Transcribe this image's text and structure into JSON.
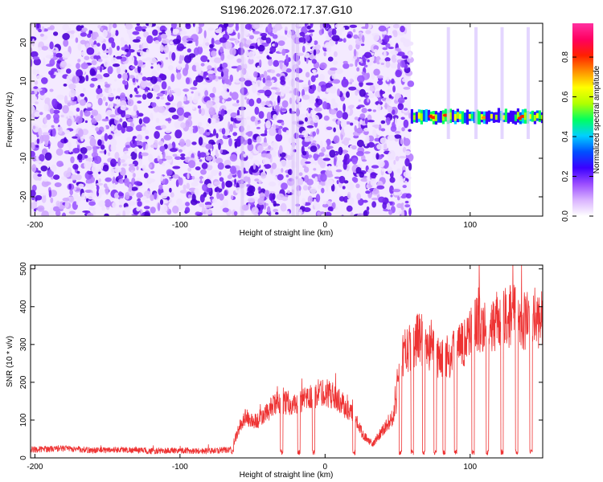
{
  "title": "S196.2026.072.17.37.G10",
  "chart_data": [
    {
      "type": "heatmap",
      "name": "spectrogram",
      "xlabel": "Height of straight line (km)",
      "ylabel": "Frequency (Hz)",
      "xlim": [
        -203,
        150
      ],
      "ylim": [
        -25,
        25
      ],
      "x_ticks": [
        -200,
        -100,
        0,
        100
      ],
      "x_tick_labels": [
        "-200",
        "-100",
        "0",
        "100"
      ],
      "y_ticks": [
        -20,
        -10,
        0,
        10,
        20
      ],
      "y_tick_labels": [
        "-20",
        "-10",
        "0",
        "10",
        "20"
      ],
      "noise_region_end_km": 59,
      "signal_band_center_hz": 0.8,
      "signal_band_width_hz": 3,
      "colorbar": {
        "label": "Normalized spectral amplitude",
        "range": [
          0,
          0.97
        ],
        "ticks": [
          0,
          0.2,
          0.4,
          0.6,
          0.8
        ],
        "tick_labels": [
          "0.0",
          "0.2",
          "0.4",
          "0.6",
          "0.8"
        ],
        "colors": [
          "#ffffff",
          "#d9b3ff",
          "#9b4dff",
          "#3b00ff",
          "#0050ff",
          "#00d0ff",
          "#00ff60",
          "#b0ff00",
          "#ffff00",
          "#ff9000",
          "#ff2000",
          "#ff0060",
          "#ff30a0"
        ]
      }
    },
    {
      "type": "line",
      "name": "snr",
      "xlabel": "Height of straight line (km)",
      "ylabel": "SNR (10 * v/v)",
      "xlim": [
        -203,
        150
      ],
      "ylim": [
        0,
        510
      ],
      "x_ticks": [
        -200,
        -100,
        0,
        100
      ],
      "x_tick_labels": [
        "-200",
        "-100",
        "0",
        "100"
      ],
      "y_ticks": [
        0,
        100,
        200,
        300,
        400,
        500
      ],
      "y_tick_labels": [
        "0",
        "100",
        "200",
        "300",
        "400",
        "500"
      ],
      "color": "#ee3333",
      "series": [
        {
          "name": "SNR",
          "x": [
            -203,
            -180,
            -160,
            -140,
            -120,
            -100,
            -80,
            -65,
            -62,
            -58,
            -55,
            -50,
            -45,
            -40,
            -35,
            -30,
            -25,
            -20,
            -15,
            -10,
            -5,
            0,
            5,
            10,
            15,
            20,
            25,
            30,
            33,
            36,
            40,
            44,
            47,
            49,
            50,
            55,
            60,
            65,
            70,
            75,
            80,
            85,
            90,
            95,
            100,
            105,
            110,
            115,
            120,
            125,
            130,
            135,
            140,
            145,
            150
          ],
          "y": [
            22,
            25,
            20,
            22,
            18,
            20,
            18,
            22,
            50,
            90,
            110,
            95,
            100,
            120,
            140,
            150,
            145,
            140,
            150,
            160,
            170,
            175,
            165,
            150,
            130,
            110,
            70,
            45,
            35,
            55,
            75,
            95,
            110,
            150,
            230,
            280,
            300,
            320,
            300,
            280,
            260,
            270,
            280,
            300,
            340,
            360,
            350,
            360,
            360,
            370,
            380,
            370,
            360,
            370,
            360
          ],
          "dropouts_km": [
            -64,
            -30,
            -18,
            -8,
            20,
            52,
            60,
            68,
            76,
            82,
            90,
            102,
            112,
            122,
            132,
            142
          ]
        }
      ]
    }
  ]
}
